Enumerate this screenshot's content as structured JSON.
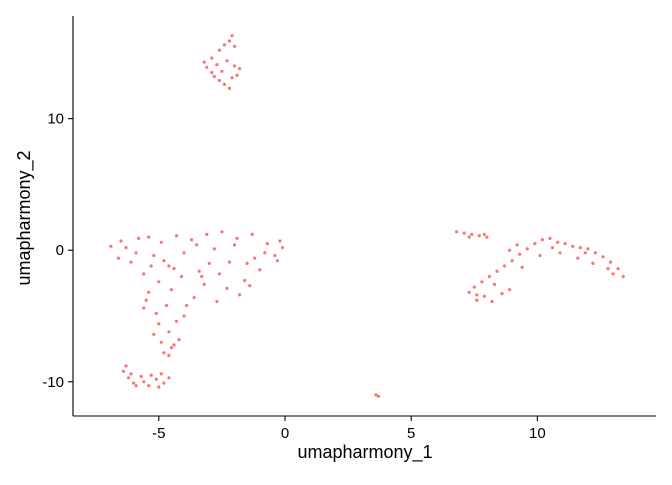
{
  "chart_data": {
    "type": "scatter",
    "title": "",
    "xlabel": "umapharmony_1",
    "ylabel": "umapharmony_2",
    "xlim": [
      -8.4,
      14.7
    ],
    "ylim": [
      -12.6,
      17.8
    ],
    "x_ticks": [
      -5,
      0,
      5,
      10
    ],
    "x_tick_labels": [
      "-5",
      "0",
      "5",
      "10"
    ],
    "y_ticks": [
      -10,
      0,
      10
    ],
    "y_tick_labels": [
      "-10",
      "0",
      "10"
    ],
    "grid": false,
    "legend": "none",
    "point_color": "#F8766D",
    "points": [
      [
        -2.9,
        14.6
      ],
      [
        -2.6,
        15.2
      ],
      [
        -2.2,
        15.9
      ],
      [
        -2.0,
        14.0
      ],
      [
        -1.9,
        13.3
      ],
      [
        -2.4,
        12.6
      ],
      [
        -2.8,
        13.2
      ],
      [
        -3.1,
        13.9
      ],
      [
        -2.3,
        14.4
      ],
      [
        -2.5,
        13.6
      ],
      [
        -2.1,
        16.3
      ],
      [
        -2.0,
        15.5
      ],
      [
        -2.7,
        14.1
      ],
      [
        -2.2,
        12.3
      ],
      [
        -3.2,
        14.3
      ],
      [
        -1.8,
        13.8
      ],
      [
        -2.4,
        15.6
      ],
      [
        -2.6,
        12.9
      ],
      [
        -2.1,
        13.1
      ],
      [
        -2.9,
        13.5
      ],
      [
        -6.9,
        0.3
      ],
      [
        -6.5,
        0.7
      ],
      [
        -6.6,
        -0.6
      ],
      [
        -6.1,
        -0.9
      ],
      [
        -5.8,
        0.9
      ],
      [
        -5.4,
        1.0
      ],
      [
        -5.2,
        -0.4
      ],
      [
        -4.9,
        0.6
      ],
      [
        -4.6,
        -1.2
      ],
      [
        -4.3,
        1.1
      ],
      [
        -4.0,
        -0.2
      ],
      [
        -3.7,
        0.8
      ],
      [
        -3.4,
        -1.6
      ],
      [
        -3.1,
        1.2
      ],
      [
        -2.8,
        0.1
      ],
      [
        -2.5,
        1.4
      ],
      [
        -2.2,
        -0.9
      ],
      [
        -1.9,
        0.9
      ],
      [
        -1.6,
        -2.3
      ],
      [
        -1.3,
        1.2
      ],
      [
        -1.0,
        -1.5
      ],
      [
        -0.7,
        0.5
      ],
      [
        -0.4,
        -0.4
      ],
      [
        -0.1,
        0.2
      ],
      [
        -5.6,
        -1.8
      ],
      [
        -5.0,
        -2.4
      ],
      [
        -4.5,
        -3.0
      ],
      [
        -4.1,
        -2.0
      ],
      [
        -3.6,
        -3.6
      ],
      [
        -3.2,
        -2.6
      ],
      [
        -2.7,
        -3.9
      ],
      [
        -2.3,
        -2.9
      ],
      [
        -1.8,
        -3.4
      ],
      [
        -1.4,
        -2.7
      ],
      [
        -3.9,
        -4.2
      ],
      [
        -0.3,
        -0.8
      ],
      [
        -0.2,
        0.7
      ],
      [
        -1.2,
        -0.6
      ],
      [
        -2.0,
        0.4
      ],
      [
        -3.0,
        -1.0
      ],
      [
        -4.8,
        -0.8
      ],
      [
        -5.9,
        -0.2
      ],
      [
        -6.3,
        0.2
      ],
      [
        -3.5,
        0.4
      ],
      [
        -2.6,
        -1.8
      ],
      [
        -1.5,
        -1.0
      ],
      [
        -4.4,
        -1.4
      ],
      [
        -5.3,
        -1.2
      ],
      [
        -0.8,
        -0.2
      ],
      [
        -3.3,
        -2.0
      ],
      [
        -5.4,
        -3.2
      ],
      [
        -5.6,
        -4.4
      ],
      [
        -5.1,
        -4.8
      ],
      [
        -4.7,
        -4.2
      ],
      [
        -5.0,
        -5.6
      ],
      [
        -4.6,
        -6.2
      ],
      [
        -4.3,
        -5.4
      ],
      [
        -4.9,
        -7.0
      ],
      [
        -4.5,
        -7.4
      ],
      [
        -4.8,
        -7.8
      ],
      [
        -4.2,
        -6.8
      ],
      [
        -5.2,
        -6.4
      ],
      [
        -4.6,
        -8.0
      ],
      [
        -4.0,
        -5.0
      ],
      [
        -5.5,
        -3.8
      ],
      [
        -4.4,
        -7.2
      ],
      [
        -6.4,
        -9.2
      ],
      [
        -6.2,
        -9.7
      ],
      [
        -6.0,
        -10.1
      ],
      [
        -5.7,
        -9.6
      ],
      [
        -5.4,
        -10.3
      ],
      [
        -5.1,
        -9.8
      ],
      [
        -4.8,
        -10.1
      ],
      [
        -4.6,
        -9.7
      ],
      [
        -5.9,
        -10.3
      ],
      [
        -5.3,
        -9.5
      ],
      [
        -6.3,
        -8.8
      ],
      [
        -5.0,
        -10.4
      ],
      [
        -4.9,
        -9.4
      ],
      [
        -5.6,
        -10.0
      ],
      [
        -6.1,
        -9.4
      ],
      [
        6.8,
        1.4
      ],
      [
        7.1,
        1.3
      ],
      [
        7.4,
        1.2
      ],
      [
        7.7,
        1.1
      ],
      [
        8.0,
        1.0
      ],
      [
        7.3,
        1.0
      ],
      [
        7.9,
        1.2
      ],
      [
        7.3,
        -3.2
      ],
      [
        7.6,
        -3.8
      ],
      [
        7.9,
        -3.5
      ],
      [
        8.2,
        -3.9
      ],
      [
        7.5,
        -2.8
      ],
      [
        7.8,
        -2.4
      ],
      [
        8.1,
        -2.0
      ],
      [
        8.4,
        -1.6
      ],
      [
        8.6,
        -3.3
      ],
      [
        8.9,
        -3.0
      ],
      [
        7.6,
        -3.4
      ],
      [
        8.3,
        -2.6
      ],
      [
        8.7,
        -1.2
      ],
      [
        9.0,
        -0.8
      ],
      [
        9.3,
        -0.3
      ],
      [
        9.6,
        0.1
      ],
      [
        9.9,
        0.5
      ],
      [
        10.2,
        0.8
      ],
      [
        10.5,
        0.9
      ],
      [
        10.8,
        0.6
      ],
      [
        11.1,
        0.5
      ],
      [
        11.4,
        0.3
      ],
      [
        11.7,
        0.2
      ],
      [
        12.0,
        0.1
      ],
      [
        12.3,
        -0.2
      ],
      [
        12.6,
        -0.5
      ],
      [
        12.9,
        -0.9
      ],
      [
        13.2,
        -1.4
      ],
      [
        13.4,
        -2.0
      ],
      [
        9.4,
        -1.3
      ],
      [
        10.1,
        -0.4
      ],
      [
        10.9,
        -0.2
      ],
      [
        11.6,
        -0.6
      ],
      [
        12.2,
        -1.0
      ],
      [
        12.8,
        -1.4
      ],
      [
        9.2,
        0.4
      ],
      [
        8.9,
        0.0
      ],
      [
        10.6,
        0.2
      ],
      [
        11.9,
        -0.2
      ],
      [
        13.0,
        -1.8
      ],
      [
        3.6,
        -11.0
      ],
      [
        3.7,
        -11.1
      ]
    ]
  }
}
